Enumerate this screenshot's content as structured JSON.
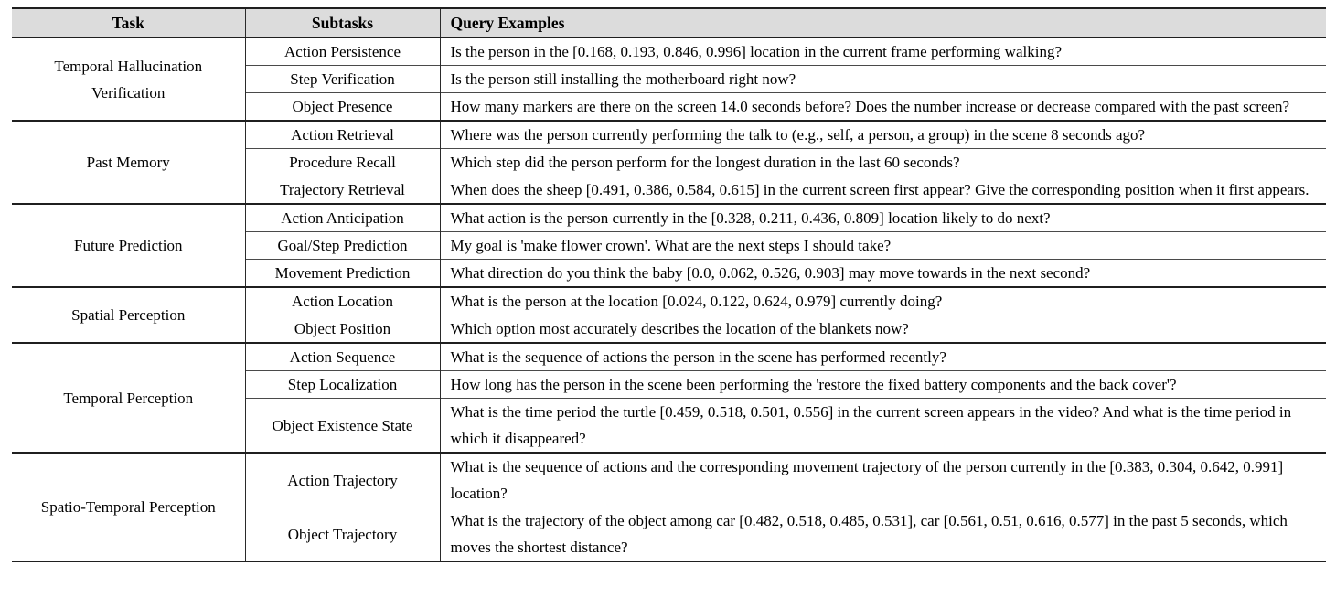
{
  "table": {
    "headers": [
      "Task",
      "Subtasks",
      "Query Examples"
    ],
    "header_bg_color": "#dcdcdc",
    "rule_color": "#1f1f1f",
    "groups": [
      {
        "task": "Temporal Hallucination Verification",
        "rows": [
          {
            "subtask": "Action Persistence",
            "query": "Is the person in the [0.168, 0.193, 0.846, 0.996] location in the current frame performing walking?"
          },
          {
            "subtask": "Step Verification",
            "query": "Is the person still installing the motherboard right now?"
          },
          {
            "subtask": "Object Presence",
            "query": "How many markers are there on the screen 14.0 seconds before? Does the number increase or decrease compared with the past screen?"
          }
        ]
      },
      {
        "task": "Past Memory",
        "rows": [
          {
            "subtask": "Action Retrieval",
            "query": "Where was the person currently performing the talk to (e.g., self, a person, a group) in the scene 8 seconds ago?"
          },
          {
            "subtask": "Procedure Recall",
            "query": "Which step did the person perform for the longest duration in the last 60 seconds?"
          },
          {
            "subtask": "Trajectory Retrieval",
            "query": "When does the sheep [0.491, 0.386, 0.584, 0.615] in the current screen first appear? Give the corresponding position when it first appears."
          }
        ]
      },
      {
        "task": "Future Prediction",
        "rows": [
          {
            "subtask": "Action Anticipation",
            "query": "What action is the person currently in the [0.328, 0.211, 0.436, 0.809] location likely to do next?"
          },
          {
            "subtask": "Goal/Step Prediction",
            "query": "My goal is 'make flower crown'. What are the next steps I should take?"
          },
          {
            "subtask": "Movement Prediction",
            "query": "What direction do you think the baby [0.0, 0.062, 0.526, 0.903] may move towards in the next second?"
          }
        ]
      },
      {
        "task": "Spatial Perception",
        "rows": [
          {
            "subtask": "Action Location",
            "query": "What is the person at the location [0.024, 0.122, 0.624, 0.979] currently doing?"
          },
          {
            "subtask": "Object Position",
            "query": "Which option most accurately describes the location of the blankets now?"
          }
        ]
      },
      {
        "task": "Temporal Perception",
        "rows": [
          {
            "subtask": "Action Sequence",
            "query": "What is the sequence of actions the person in the scene has performed recently?"
          },
          {
            "subtask": "Step Localization",
            "query": "How long has the person in the scene been performing the 'restore the fixed battery components and the back cover'?"
          },
          {
            "subtask": "Object Existence State",
            "query": "What is the time period the turtle [0.459, 0.518, 0.501, 0.556] in the current screen appears in the video? And what is the time period in which it disappeared?"
          }
        ]
      },
      {
        "task": "Spatio-Temporal Perception",
        "rows": [
          {
            "subtask": "Action Trajectory",
            "query": "What is the sequence of actions and the corresponding movement trajectory of the person currently in the [0.383, 0.304, 0.642, 0.991] location?"
          },
          {
            "subtask": "Object Trajectory",
            "query": "What is the trajectory of the object among car [0.482, 0.518, 0.485, 0.531], car [0.561, 0.51, 0.616, 0.577] in the past 5 seconds, which moves the shortest distance?"
          }
        ]
      }
    ]
  }
}
